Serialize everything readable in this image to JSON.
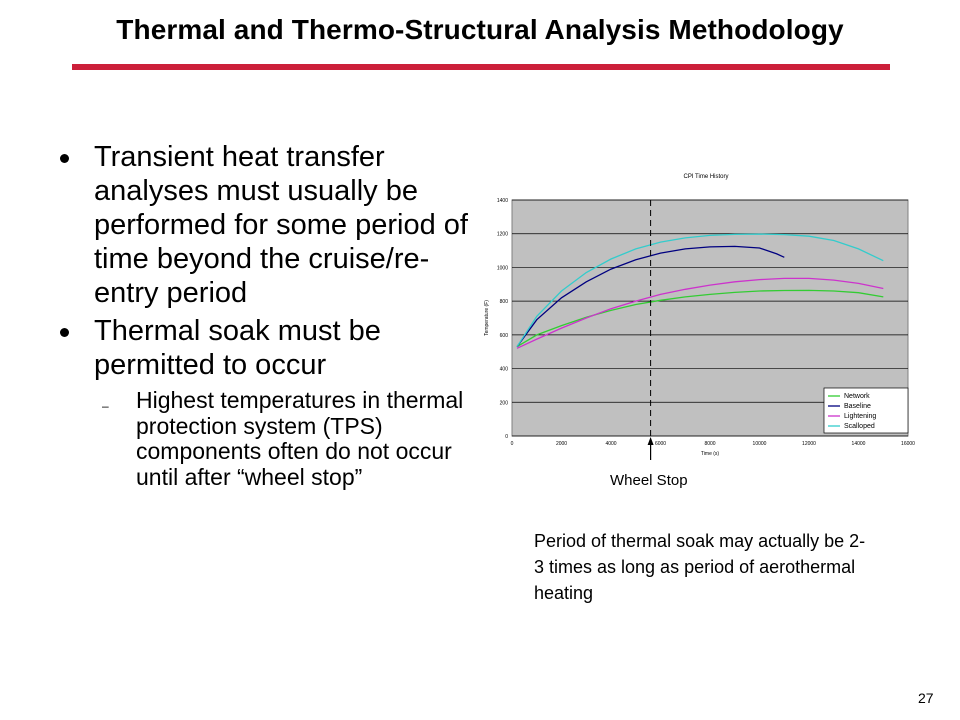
{
  "slide": {
    "title": "Thermal and Thermo-Structural Analysis Methodology",
    "bullets": [
      "Transient heat transfer analyses must usually be performed for some period of time beyond the cruise/re-entry period",
      "Thermal soak must be permitted to occur"
    ],
    "sub_bullet": "Highest temperatures in thermal protection system (TPS) components often do not occur until after “wheel stop”",
    "sub_bullet_marker": "–",
    "wheel_stop_label": "Wheel Stop",
    "note": "Period of thermal soak may actually be 2-3 times as long as period of aerothermal heating",
    "page_number": "27"
  },
  "chart_data": {
    "type": "line",
    "title": "CPI Time History",
    "xlabel": "Time (s)",
    "ylabel": "Temperature (F)",
    "xlim": [
      0,
      16000
    ],
    "ylim": [
      0,
      1400
    ],
    "xticks": [
      0,
      2000,
      4000,
      6000,
      8000,
      10000,
      12000,
      14000,
      16000
    ],
    "yticks": [
      0,
      200,
      400,
      600,
      800,
      1000,
      1200,
      1400
    ],
    "grid": true,
    "legend_position": "bottom-right",
    "background": "#c0c0c0",
    "vertical_marker_x": 5600,
    "series": [
      {
        "name": "Network",
        "color": "#33cc33",
        "x": [
          200,
          1000,
          2000,
          3000,
          4000,
          5000,
          6000,
          7000,
          8000,
          9000,
          10000,
          11000,
          12000,
          13000,
          14000,
          15000
        ],
        "y": [
          530,
          600,
          655,
          705,
          745,
          780,
          805,
          825,
          840,
          852,
          860,
          863,
          864,
          860,
          850,
          825
        ]
      },
      {
        "name": "Baseline",
        "color": "#000080",
        "x": [
          200,
          1000,
          2000,
          3000,
          4000,
          5000,
          6000,
          7000,
          8000,
          9000,
          10000,
          10700,
          11000
        ],
        "y": [
          530,
          690,
          820,
          915,
          990,
          1045,
          1085,
          1110,
          1122,
          1125,
          1115,
          1080,
          1060
        ]
      },
      {
        "name": "Lightening",
        "color": "#cc33cc",
        "x": [
          200,
          1000,
          2000,
          3000,
          4000,
          5000,
          6000,
          7000,
          8000,
          9000,
          10000,
          11000,
          12000,
          13000,
          14000,
          15000
        ],
        "y": [
          520,
          575,
          640,
          700,
          755,
          800,
          840,
          870,
          895,
          915,
          928,
          935,
          935,
          925,
          905,
          875
        ]
      },
      {
        "name": "Scalloped",
        "color": "#33cccc",
        "x": [
          200,
          1000,
          2000,
          3000,
          4000,
          5000,
          6000,
          7000,
          8000,
          9000,
          10000,
          11000,
          12000,
          13000,
          14000,
          15000
        ],
        "y": [
          530,
          710,
          860,
          970,
          1050,
          1110,
          1150,
          1175,
          1190,
          1196,
          1198,
          1195,
          1185,
          1160,
          1110,
          1040
        ]
      }
    ]
  }
}
